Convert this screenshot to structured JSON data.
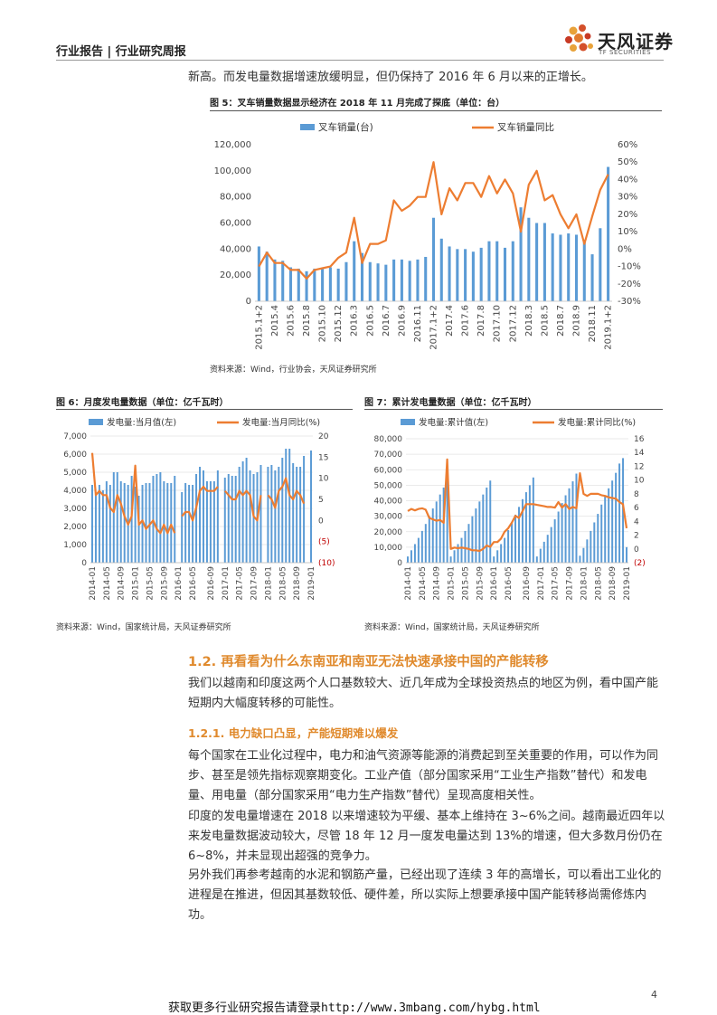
{
  "header": {
    "title": "行业报告 | 行业研究周报",
    "logo_text": "天风证券",
    "logo_sub": "TF SECURITIES"
  },
  "intro_line": "新高。而发电量数据增速放缓明显，但仍保持了 2016 年 6 月以来的正增长。",
  "fig5": {
    "title": "图 5：叉车销量数据显示经济在 2018 年 11 月完成了探底（单位：台）",
    "source": "资料来源：Wind，行业协会，天风证券研究所"
  },
  "fig6": {
    "title": "图 6：月度发电量数据（单位：亿千瓦时）",
    "source": "资料来源：Wind，国家统计局，天风证券研究所"
  },
  "fig7": {
    "title": "图 7：累计发电量数据（单位：亿千瓦时）",
    "source": "资料来源：Wind，国家统计局，天风证券研究所"
  },
  "section": {
    "title": "1.2. 再看看为什么东南亚和南亚无法快速承接中国的产能转移",
    "intro": "我们以越南和印度这两个人口基数较大、近几年成为全球投资热点的地区为例，看中国产能短期内大幅度转移的可能性。",
    "sub_title": "1.2.1. 电力缺口凸显，产能短期难以爆发",
    "para1": "每个国家在工业化过程中，电力和油气资源等能源的消费起到至关重要的作用，可以作为同步、甚至是领先指标观察期变化。工业产值（部分国家采用“工业生产指数”替代）和发电量、用电量（部分国家采用“电力生产指数”替代）呈现高度相关性。",
    "para2": "印度的发电量增速在 2018 以来增速较为平缓、基本上维持在 3~6%之间。越南最近四年以来发电量数据波动较大，尽管 18 年 12 月一度发电量达到 13%的增速，但大多数月份仍在 6~8%，并未显现出超强的竞争力。",
    "para3": "另外我们再参考越南的水泥和钢筋产量，已经出现了连续 3 年的高增长，可以看出工业化的进程是在推进，但因其基数较低、硬件差，所以实际上想要承接中国产能转移尚需修炼内功。"
  },
  "page_number": "4",
  "footer": "获取更多行业研究报告请登录http://www.3mbang.com/hybg.html",
  "colors": {
    "bar": "#5b9bd5",
    "line": "#ed7d31",
    "accent": "#e08a2d",
    "negative": "#c00000"
  },
  "chart_data": [
    {
      "id": "fig5",
      "type": "bar",
      "legend": [
        "叉车销量(台)",
        "叉车销量同比"
      ],
      "legend_placement": "top",
      "grid": false,
      "categories": [
        "2015.1+2",
        "2015.3",
        "2015.4",
        "2015.5",
        "2015.6",
        "2015.7",
        "2015.8",
        "2015.9",
        "2015.10",
        "2015.11",
        "2015.12",
        "2016.1",
        "2016.3",
        "2016.4",
        "2016.5",
        "2016.6",
        "2016.7",
        "2016.8",
        "2016.9",
        "2016.10",
        "2016.11",
        "2016.12",
        "2017.1+2",
        "2017.3",
        "2017.4",
        "2017.5",
        "2017.6",
        "2017.7",
        "2017.8",
        "2017.9",
        "2017.10",
        "2017.11",
        "2017.12",
        "2018.1",
        "2018.3",
        "2018.4",
        "2018.5",
        "2018.6",
        "2018.7",
        "2018.8",
        "2018.9",
        "2018.10",
        "2018.11",
        "2018.12",
        "2019.1+2"
      ],
      "x_tick_labels": [
        "2015.1+2",
        "2015.4",
        "2015.6",
        "2015.8",
        "2015.10",
        "2015.12",
        "2016.3",
        "2016.5",
        "2016.7",
        "2016.9",
        "2016.11",
        "2017.1+2",
        "2017.4",
        "2017.6",
        "2017.8",
        "2017.10",
        "2017.12",
        "2018.3",
        "2018.5",
        "2018.7",
        "2018.9",
        "2018.11",
        "2019.1+2"
      ],
      "series": [
        {
          "name": "叉车销量(台)",
          "axis": "left",
          "type": "bar",
          "values": [
            42000,
            38000,
            32000,
            31000,
            26000,
            25000,
            23000,
            25000,
            25000,
            26000,
            25000,
            30000,
            46000,
            37000,
            30000,
            29000,
            28000,
            32000,
            32000,
            31000,
            32000,
            34000,
            64000,
            48000,
            42000,
            40000,
            40000,
            38000,
            41000,
            46000,
            46000,
            41000,
            46000,
            72000,
            64000,
            60000,
            60000,
            52000,
            51000,
            52000,
            51000,
            47000,
            36000,
            56000,
            103000
          ]
        },
        {
          "name": "叉车销量同比",
          "axis": "right",
          "type": "line",
          "values": [
            -10,
            -2,
            -8,
            -8,
            -12,
            -12,
            -17,
            -12,
            -11,
            -10,
            -5,
            -2,
            18,
            -8,
            3,
            3,
            5,
            28,
            22,
            25,
            30,
            30,
            50,
            20,
            35,
            28,
            38,
            38,
            30,
            42,
            32,
            40,
            32,
            10,
            37,
            45,
            28,
            31,
            20,
            12,
            20,
            3,
            19,
            34,
            43
          ]
        }
      ],
      "ylim_left": [
        0,
        120000
      ],
      "yticks_left": [
        "0",
        "20,000",
        "40,000",
        "60,000",
        "80,000",
        "100,000",
        "120,000"
      ],
      "ylim_right": [
        -30,
        60
      ],
      "yticks_right": [
        "-30%",
        "-20%",
        "-10%",
        "0%",
        "10%",
        "20%",
        "30%",
        "40%",
        "50%",
        "60%"
      ]
    },
    {
      "id": "fig6",
      "type": "bar",
      "legend": [
        "发电量:当月值(左)",
        "发电量:当月同比(%)"
      ],
      "legend_placement": "top",
      "grid": true,
      "x_tick_labels": [
        "2014-01",
        "2014-05",
        "2014-09",
        "2015-01",
        "2015-05",
        "2015-09",
        "2016-01",
        "2016-05",
        "2016-09",
        "2017-01",
        "2017-05",
        "2017-09",
        "2018-01",
        "2018-05",
        "2018-09",
        "2019-01"
      ],
      "series": [
        {
          "name": "发电量:当月值(左)",
          "axis": "left",
          "type": "bar",
          "values": [
            4300,
            3800,
            4300,
            4000,
            4500,
            4300,
            5000,
            5000,
            4500,
            4400,
            4300,
            4800,
            4200,
            3700,
            4300,
            4400,
            4400,
            4800,
            4900,
            5000,
            4500,
            4400,
            4400,
            4800,
            null,
            3900,
            4400,
            4300,
            4300,
            4900,
            5300,
            5100,
            4500,
            4500,
            4500,
            5100,
            null,
            4700,
            4900,
            4800,
            4800,
            5300,
            5600,
            5800,
            5100,
            4900,
            5000,
            5400,
            null,
            5300,
            5400,
            5100,
            5300,
            5800,
            6300,
            6300,
            5500,
            5300,
            5300,
            5900,
            null,
            6200
          ]
        },
        {
          "name": "发电量:当月同比(%)",
          "axis": "right",
          "type": "line",
          "values": [
            16,
            6,
            7,
            6,
            6,
            3,
            2,
            6,
            4,
            1,
            -1,
            1,
            13,
            -1,
            0,
            -2,
            -1,
            0,
            -2,
            -3,
            -1,
            -3,
            -1,
            -3,
            null,
            1,
            2,
            2,
            0,
            3,
            7,
            8,
            7,
            7,
            7,
            8,
            null,
            7,
            6,
            5,
            5,
            7,
            6,
            7,
            6,
            1,
            0,
            6,
            null,
            6,
            5,
            3,
            7,
            8,
            10,
            6,
            5,
            7,
            6,
            4,
            null,
            7
          ]
        }
      ],
      "ylim_left": [
        0,
        7000
      ],
      "yticks_left": [
        "0",
        "1,000",
        "2,000",
        "3,000",
        "4,000",
        "5,000",
        "6,000",
        "7,000"
      ],
      "ylim_right": [
        -10,
        20
      ],
      "yticks_right": [
        "(10)",
        "(5)",
        "0",
        "5",
        "10",
        "15",
        "20"
      ]
    },
    {
      "id": "fig7",
      "type": "bar",
      "legend": [
        "发电量:累计值(左)",
        "发电量:累计同比(%)"
      ],
      "legend_placement": "top",
      "grid": true,
      "x_tick_labels": [
        "2014-01",
        "2014-05",
        "2014-09",
        "2015-01",
        "2015-05",
        "2015-09",
        "2016-01",
        "2016-05",
        "2016-09",
        "2017-01",
        "2017-05",
        "2017-09",
        "2018-01",
        "2018-05",
        "2018-09",
        "2019-01"
      ],
      "series": [
        {
          "name": "发电量:累计值(左)",
          "axis": "left",
          "type": "bar",
          "values": [
            4000,
            8000,
            12000,
            16000,
            20500,
            25000,
            30000,
            35000,
            39500,
            44000,
            48500,
            53000,
            4000,
            8000,
            12000,
            16000,
            20500,
            25000,
            30000,
            35000,
            39500,
            44000,
            48500,
            53000,
            4000,
            8000,
            12000,
            16000,
            21000,
            26000,
            31000,
            36000,
            41000,
            45500,
            50000,
            55000,
            4000,
            9000,
            13500,
            18000,
            23000,
            28000,
            33000,
            38500,
            43500,
            48000,
            52500,
            57500,
            4500,
            9500,
            15000,
            20500,
            26000,
            31500,
            37500,
            43000,
            48000,
            53000,
            58000,
            64000,
            67500,
            10000
          ]
        },
        {
          "name": "发电量:累计同比(%)",
          "axis": "right",
          "type": "line",
          "values": [
            5.5,
            5.8,
            5.6,
            5.8,
            5.9,
            5.7,
            4.5,
            4.3,
            4.1,
            4.2,
            3.8,
            13,
            0,
            0.2,
            0.1,
            0.2,
            0.1,
            0,
            -0.2,
            -0.2,
            -0.3,
            0,
            0.5,
            0.3,
            1,
            1,
            1.5,
            2.5,
            3,
            3.8,
            4.8,
            4.5,
            5.5,
            6.5,
            6.5,
            6.5,
            6.4,
            6.3,
            6.2,
            6.1,
            6.1,
            6.0,
            6.8,
            6.0,
            6.5,
            5.8,
            6.1,
            5.9,
            11,
            8,
            7.7,
            8,
            8,
            8,
            7.8,
            7.7,
            7.5,
            7.4,
            7.3,
            6.8,
            6.5,
            3
          ]
        }
      ],
      "ylim_left": [
        0,
        80000
      ],
      "yticks_left": [
        "0",
        "10,000",
        "20,000",
        "30,000",
        "40,000",
        "50,000",
        "60,000",
        "70,000",
        "80,000"
      ],
      "ylim_right": [
        -2,
        16
      ],
      "yticks_right": [
        "(2)",
        "0",
        "2",
        "4",
        "6",
        "8",
        "10",
        "12",
        "14",
        "16"
      ]
    }
  ]
}
